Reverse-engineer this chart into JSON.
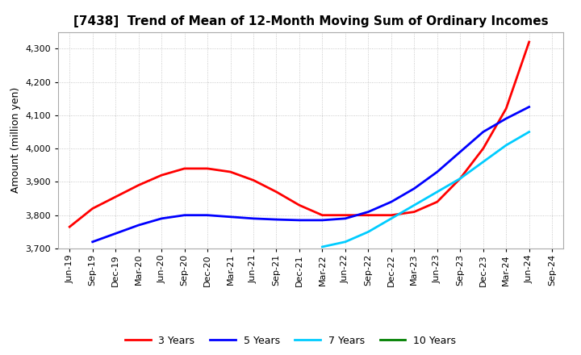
{
  "title": "[7438]  Trend of Mean of 12-Month Moving Sum of Ordinary Incomes",
  "ylabel": "Amount (million yen)",
  "ylim": [
    3700,
    4350
  ],
  "yticks": [
    3700,
    3800,
    3900,
    4000,
    4100,
    4200,
    4300
  ],
  "background_color": "#ffffff",
  "grid_color": "#bbbbbb",
  "x_labels": [
    "Jun-19",
    "Sep-19",
    "Dec-19",
    "Mar-20",
    "Jun-20",
    "Sep-20",
    "Dec-20",
    "Mar-21",
    "Jun-21",
    "Sep-21",
    "Dec-21",
    "Mar-22",
    "Jun-22",
    "Sep-22",
    "Dec-22",
    "Mar-23",
    "Jun-23",
    "Sep-23",
    "Dec-23",
    "Mar-24",
    "Jun-24",
    "Sep-24"
  ],
  "series": {
    "3 Years": {
      "color": "#ff0000",
      "values": [
        3765,
        3820,
        3855,
        3890,
        3920,
        3940,
        3940,
        3930,
        3905,
        3870,
        3830,
        3800,
        3800,
        3800,
        3800,
        3810,
        3840,
        3910,
        4000,
        4120,
        4320,
        null
      ]
    },
    "5 Years": {
      "color": "#0000ff",
      "values": [
        null,
        3720,
        3745,
        3770,
        3790,
        3800,
        3800,
        3795,
        3790,
        3787,
        3785,
        3785,
        3790,
        3810,
        3840,
        3880,
        3930,
        3990,
        4050,
        4090,
        4125,
        null
      ]
    },
    "7 Years": {
      "color": "#00ccff",
      "values": [
        null,
        null,
        null,
        null,
        null,
        null,
        null,
        null,
        null,
        null,
        null,
        3705,
        3720,
        3750,
        3790,
        3830,
        3870,
        3910,
        3960,
        4010,
        4050,
        null
      ]
    },
    "10 Years": {
      "color": "#008000",
      "values": [
        null,
        null,
        null,
        null,
        null,
        null,
        null,
        null,
        null,
        null,
        null,
        null,
        null,
        null,
        null,
        null,
        null,
        null,
        null,
        null,
        null,
        null
      ]
    }
  },
  "legend_labels": [
    "3 Years",
    "5 Years",
    "7 Years",
    "10 Years"
  ],
  "legend_colors": [
    "#ff0000",
    "#0000ff",
    "#00ccff",
    "#008000"
  ],
  "title_fontsize": 11,
  "ylabel_fontsize": 9,
  "tick_fontsize": 8,
  "linewidth": 2.0
}
